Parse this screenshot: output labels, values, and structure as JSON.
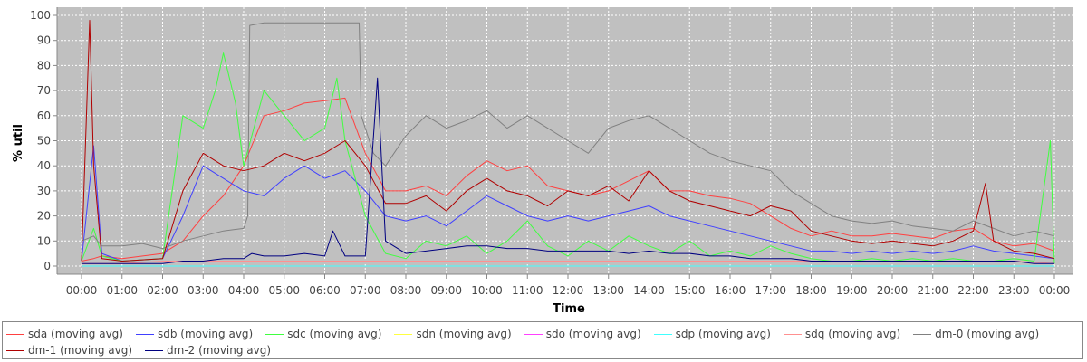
{
  "chart_data": {
    "type": "line",
    "title": "",
    "xlabel": "Time",
    "ylabel": "% util",
    "ylim": [
      0,
      100
    ],
    "yticks": [
      "0",
      "10",
      "20",
      "30",
      "40",
      "50",
      "60",
      "70",
      "80",
      "90",
      "100"
    ],
    "xticks": [
      "00:00",
      "01:00",
      "02:00",
      "03:00",
      "04:00",
      "05:00",
      "06:00",
      "07:00",
      "08:00",
      "09:00",
      "10:00",
      "11:00",
      "12:00",
      "13:00",
      "14:00",
      "15:00",
      "16:00",
      "17:00",
      "18:00",
      "19:00",
      "20:00",
      "21:00",
      "22:00",
      "23:00",
      "00:00"
    ],
    "x_unit": "hours",
    "grid": true,
    "legend_position": "bottom",
    "background_color": "#c0c0c0",
    "series": [
      {
        "name": "sda (moving avg)",
        "color": "#ff4040",
        "x": [
          0,
          0.3,
          0.5,
          1,
          2,
          2.5,
          3,
          3.5,
          4,
          4.5,
          5,
          5.5,
          6,
          6.5,
          7,
          7.5,
          8,
          8.5,
          9,
          9.5,
          10,
          10.5,
          11,
          11.5,
          12,
          12.5,
          13,
          13.5,
          14,
          14.5,
          15,
          15.5,
          16,
          16.5,
          17,
          17.5,
          18,
          18.5,
          19,
          19.5,
          20,
          20.5,
          21,
          21.5,
          22,
          22.5,
          23,
          23.5,
          24
        ],
        "y": [
          2,
          3,
          4,
          3,
          5,
          10,
          20,
          28,
          40,
          60,
          62,
          65,
          66,
          67,
          45,
          30,
          30,
          32,
          28,
          36,
          42,
          38,
          40,
          32,
          30,
          28,
          30,
          34,
          38,
          30,
          30,
          28,
          27,
          25,
          20,
          15,
          12,
          14,
          12,
          12,
          13,
          12,
          11,
          14,
          15,
          10,
          8,
          9,
          6
        ]
      },
      {
        "name": "sdb (moving avg)",
        "color": "#4040ff",
        "x": [
          0,
          0.3,
          0.5,
          1,
          2,
          2.5,
          3,
          3.5,
          4,
          4.5,
          5,
          5.5,
          6,
          6.5,
          7,
          7.5,
          8,
          8.5,
          9,
          9.5,
          10,
          10.5,
          11,
          11.5,
          12,
          12.5,
          13,
          13.5,
          14,
          14.5,
          15,
          15.5,
          16,
          16.5,
          17,
          17.5,
          18,
          18.5,
          19,
          19.5,
          20,
          20.5,
          21,
          21.5,
          22,
          22.5,
          23,
          23.5,
          24
        ],
        "y": [
          2,
          48,
          5,
          2,
          3,
          20,
          40,
          35,
          30,
          28,
          35,
          40,
          35,
          38,
          30,
          20,
          18,
          20,
          16,
          22,
          28,
          24,
          20,
          18,
          20,
          18,
          20,
          22,
          24,
          20,
          18,
          16,
          14,
          12,
          10,
          8,
          6,
          6,
          5,
          6,
          5,
          6,
          5,
          6,
          8,
          6,
          5,
          4,
          3
        ]
      },
      {
        "name": "sdc (moving avg)",
        "color": "#40ff40",
        "x": [
          0,
          0.3,
          0.5,
          1,
          2,
          2.5,
          3,
          3.3,
          3.5,
          3.8,
          4,
          4.5,
          5,
          5.5,
          6,
          6.3,
          6.5,
          7,
          7.5,
          8,
          8.5,
          9,
          9.5,
          10,
          10.5,
          11,
          11.5,
          12,
          12.5,
          13,
          13.5,
          14,
          14.5,
          15,
          15.5,
          16,
          16.5,
          17,
          17.5,
          18,
          18.5,
          19,
          19.5,
          20,
          20.5,
          21,
          21.5,
          22,
          22.5,
          23,
          23.5,
          23.9,
          24
        ],
        "y": [
          2,
          15,
          4,
          2,
          3,
          60,
          55,
          70,
          85,
          65,
          40,
          70,
          60,
          50,
          55,
          75,
          50,
          20,
          5,
          3,
          10,
          8,
          12,
          5,
          10,
          18,
          8,
          4,
          10,
          6,
          12,
          8,
          5,
          10,
          4,
          6,
          4,
          8,
          5,
          3,
          2,
          2,
          3,
          2,
          3,
          2,
          3,
          2,
          2,
          3,
          2,
          50,
          1
        ]
      },
      {
        "name": "sdn (moving avg)",
        "color": "#ffff40",
        "x": [
          0,
          24
        ],
        "y": [
          0,
          0
        ]
      },
      {
        "name": "sdo (moving avg)",
        "color": "#ff40ff",
        "x": [
          0,
          24
        ],
        "y": [
          0,
          0
        ]
      },
      {
        "name": "sdp (moving avg)",
        "color": "#40ffff",
        "x": [
          0,
          24
        ],
        "y": [
          0,
          0
        ]
      },
      {
        "name": "sdq (moving avg)",
        "color": "#ff9090",
        "x": [
          0,
          1,
          2,
          3,
          4,
          5,
          6,
          7,
          8,
          9,
          10,
          11,
          12,
          13,
          14,
          15,
          16,
          17,
          18,
          19,
          20,
          21,
          22,
          23,
          24
        ],
        "y": [
          1,
          1,
          2,
          2,
          2,
          2,
          2,
          2,
          2,
          2,
          2,
          2,
          2,
          2,
          2,
          2,
          2,
          2,
          2,
          2,
          2,
          2,
          2,
          2,
          1
        ]
      },
      {
        "name": "dm-0 (moving avg)",
        "color": "#808080",
        "x": [
          0,
          0.3,
          0.5,
          1,
          1.5,
          2,
          2.5,
          3,
          3.5,
          4,
          4.1,
          4.15,
          4.5,
          5,
          5.5,
          6,
          6.5,
          6.85,
          6.9,
          7.2,
          7.5,
          8,
          8.5,
          9,
          9.5,
          10,
          10.5,
          11,
          11.5,
          12,
          12.5,
          13,
          13.5,
          14,
          14.5,
          15,
          15.5,
          16,
          16.5,
          17,
          17.5,
          18,
          18.5,
          19,
          19.5,
          20,
          20.5,
          21,
          21.5,
          22,
          22.5,
          23,
          23.5,
          24
        ],
        "y": [
          10,
          12,
          8,
          8,
          9,
          7,
          10,
          12,
          14,
          15,
          20,
          96,
          97,
          97,
          97,
          97,
          97,
          97,
          60,
          45,
          40,
          52,
          60,
          55,
          58,
          62,
          55,
          60,
          55,
          50,
          45,
          55,
          58,
          60,
          55,
          50,
          45,
          42,
          40,
          38,
          30,
          25,
          20,
          18,
          17,
          18,
          16,
          15,
          14,
          18,
          15,
          12,
          14,
          12
        ]
      },
      {
        "name": "dm-1 (moving avg)",
        "color": "#b00000",
        "x": [
          0,
          0.2,
          0.3,
          0.5,
          1,
          2,
          2.5,
          3,
          3.5,
          4,
          4.5,
          5,
          5.5,
          6,
          6.5,
          7,
          7.5,
          8,
          8.5,
          9,
          9.5,
          10,
          10.5,
          11,
          11.5,
          12,
          12.5,
          13,
          13.5,
          14,
          14.5,
          15,
          15.5,
          16,
          16.5,
          17,
          17.5,
          18,
          18.5,
          19,
          19.5,
          20,
          20.5,
          21,
          21.5,
          22,
          22.3,
          22.5,
          23,
          23.5,
          24
        ],
        "y": [
          2,
          98,
          40,
          3,
          2,
          3,
          30,
          45,
          40,
          38,
          40,
          45,
          42,
          45,
          50,
          40,
          25,
          25,
          28,
          22,
          30,
          35,
          30,
          28,
          24,
          30,
          28,
          32,
          26,
          38,
          30,
          26,
          24,
          22,
          20,
          24,
          22,
          14,
          12,
          10,
          9,
          10,
          9,
          8,
          10,
          14,
          33,
          10,
          6,
          5,
          3
        ]
      },
      {
        "name": "dm-2 (moving avg)",
        "color": "#000080",
        "x": [
          0,
          1,
          2,
          2.5,
          3,
          3.5,
          4,
          4.2,
          4.5,
          5,
          5.5,
          6,
          6.2,
          6.5,
          7,
          7.3,
          7.5,
          8,
          8.5,
          9,
          9.5,
          10,
          10.5,
          11,
          11.5,
          12,
          12.5,
          13,
          13.5,
          14,
          14.5,
          15,
          15.5,
          16,
          16.5,
          17,
          17.5,
          18,
          18.5,
          19,
          19.5,
          20,
          20.5,
          21,
          21.5,
          22,
          22.5,
          23,
          23.5,
          24
        ],
        "y": [
          1,
          1,
          1,
          2,
          2,
          3,
          3,
          5,
          4,
          4,
          5,
          4,
          14,
          4,
          4,
          75,
          10,
          5,
          6,
          7,
          8,
          8,
          7,
          7,
          6,
          6,
          6,
          6,
          5,
          6,
          5,
          5,
          4,
          4,
          3,
          3,
          3,
          2,
          2,
          2,
          2,
          2,
          2,
          2,
          2,
          2,
          2,
          2,
          1,
          1
        ]
      }
    ]
  }
}
